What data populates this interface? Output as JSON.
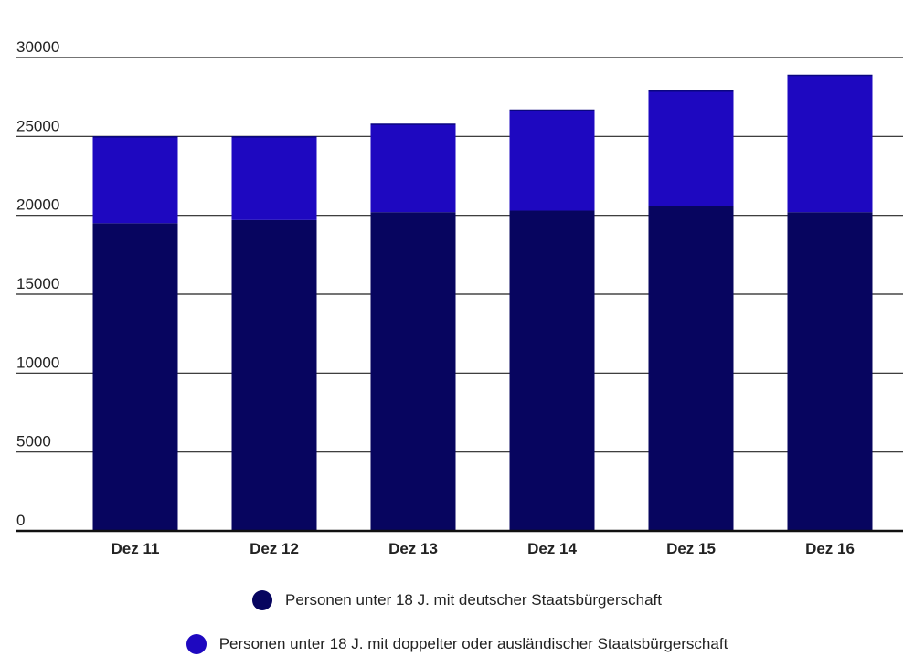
{
  "chart_data": {
    "type": "bar",
    "stacked": true,
    "categories": [
      "Dez 11",
      "Dez 12",
      "Dez 13",
      "Dez 14",
      "Dez 15",
      "Dez 16"
    ],
    "series": [
      {
        "name": "Personen unter 18 J. mit deutscher Staatsbürgerschaft",
        "color": "#07055f",
        "values": [
          19500,
          19700,
          20200,
          20300,
          20600,
          20200
        ]
      },
      {
        "name": "Personen unter 18 J. mit doppelter oder ausländischer Staatsbürgerschaft",
        "color": "#1e08c0",
        "values": [
          5500,
          5300,
          5600,
          6400,
          7300,
          8700
        ]
      }
    ],
    "ylim": [
      0,
      30000
    ],
    "yticks": [
      "0",
      "5000",
      "10000",
      "15000",
      "20000",
      "25000",
      "30000"
    ],
    "grid": true,
    "legend_position": "bottom"
  }
}
